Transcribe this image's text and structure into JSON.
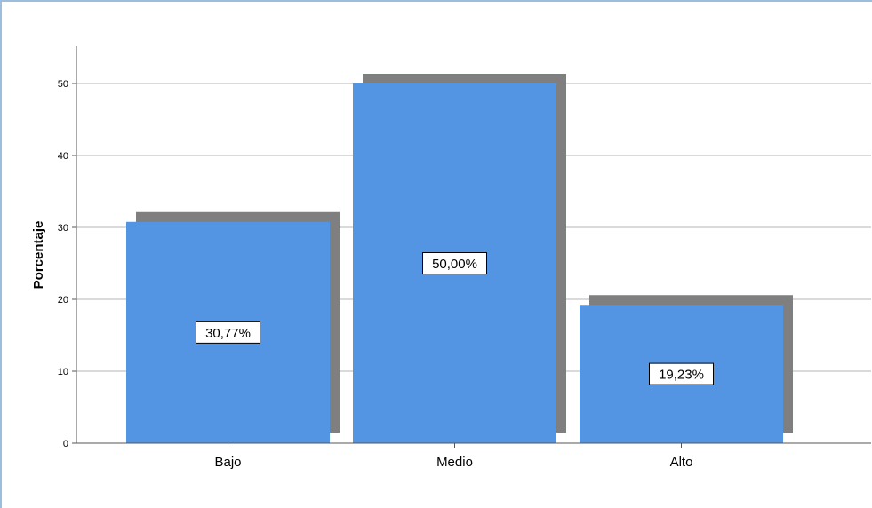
{
  "chart_data": {
    "type": "bar",
    "categories": [
      "Bajo",
      "Medio",
      "Alto"
    ],
    "values": [
      30.77,
      50.0,
      19.23
    ],
    "value_labels": [
      "30,77%",
      "50,00%",
      "19,23%"
    ],
    "ylabel": "Porcentaje",
    "xlabel": "",
    "ylim": [
      0,
      55
    ],
    "yticks": [
      0,
      10,
      20,
      30,
      40,
      50
    ],
    "ytick_labels": [
      "0",
      "10",
      "20",
      "30",
      "40",
      "50"
    ],
    "grid": true,
    "bar_color": "#5495e3",
    "shadow_color": "#7f7f7f",
    "grid_color": "#b5b5b5",
    "axis_color": "#555555"
  }
}
